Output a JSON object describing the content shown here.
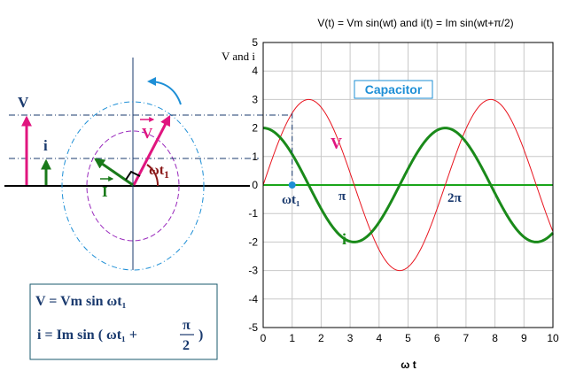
{
  "phasor": {
    "label_V_left": "V",
    "label_i_left": "i",
    "label_V_rot": "V",
    "label_I_rot": "I",
    "label_wt": "ωt",
    "label_wt_sub": "1",
    "colors": {
      "voltage": "#e0157f",
      "current": "#1a7a1a",
      "rotation": "#1e8fd6",
      "angle": "#8b1a1a",
      "text_dark": "#1a3a6e"
    }
  },
  "formula": {
    "line1": "V = Vm sin ωt₁",
    "line2_prefix": "i  = Im sin ( ωt₁ +",
    "line2_num": "π",
    "line2_den": "2",
    "line2_suffix": ")"
  },
  "chart_data": {
    "type": "line",
    "title": "V(t) = Vm sin(wt) and i(t) = Im sin(wt+π/2)",
    "xlabel": "ω t",
    "ylabel": "V and i",
    "xlim": [
      0,
      10
    ],
    "ylim": [
      -5,
      5
    ],
    "xticks": [
      "0",
      "1",
      "2",
      "3",
      "4",
      "5",
      "6",
      "7",
      "8",
      "9",
      "10"
    ],
    "yticks": [
      "5",
      "4",
      "3",
      "2",
      "1",
      "0",
      "-1",
      "-2",
      "-3",
      "-4",
      "-5"
    ],
    "grid": true,
    "series": [
      {
        "name": "V",
        "amplitude": 3,
        "phase": 0,
        "color": "#e8141e"
      },
      {
        "name": "i",
        "amplitude": 2,
        "phase": 1.5708,
        "color": "#1a8a1a"
      }
    ],
    "annotations": {
      "capacitor_label": "Capacitor",
      "wt1_label": "ωt₁",
      "pi_label": "π",
      "two_pi_label": "2π",
      "V_label": "V",
      "i_label": "i",
      "wt1_value": 1
    }
  }
}
